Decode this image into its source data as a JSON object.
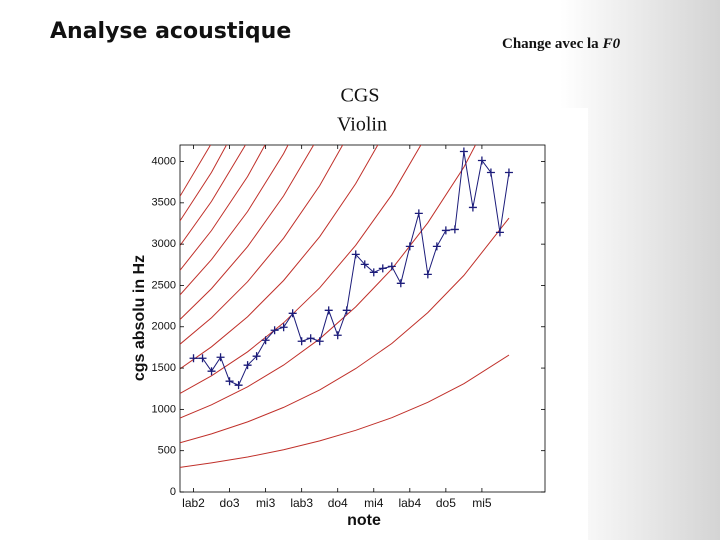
{
  "slide_title": "Analyse acoustique",
  "side_note": {
    "text": "Change avec la",
    "emphasis": "F0"
  },
  "chart_data": {
    "type": "line",
    "title": "CGS",
    "subtitle": "Violin",
    "xlabel": "note",
    "ylabel": "cgs absolu in Hz",
    "xlim": [
      -1.5,
      39
    ],
    "ylim": [
      0,
      4200
    ],
    "xticks": [
      {
        "value": 0,
        "label": "lab2"
      },
      {
        "value": 4,
        "label": "do3"
      },
      {
        "value": 8,
        "label": "mi3"
      },
      {
        "value": 12,
        "label": "lab3"
      },
      {
        "value": 16,
        "label": "do4"
      },
      {
        "value": 20,
        "label": "mi4"
      },
      {
        "value": 24,
        "label": "lab4"
      },
      {
        "value": 28,
        "label": "do5"
      },
      {
        "value": 32,
        "label": "mi5"
      }
    ],
    "yticks": [
      0,
      500,
      1000,
      1500,
      2000,
      2500,
      3000,
      3500,
      4000
    ],
    "x": [
      0,
      1,
      2,
      3,
      4,
      5,
      6,
      7,
      8,
      9,
      10,
      11,
      12,
      13,
      14,
      15,
      16,
      17,
      18,
      19,
      20,
      21,
      22,
      23,
      24,
      25,
      26,
      27,
      28,
      29,
      30,
      31,
      32,
      33,
      34,
      35
    ],
    "series": [
      {
        "color": "#1c1c7a",
        "values": [
          1619,
          1619,
          1462,
          1631,
          1341,
          1293,
          1535,
          1644,
          1837,
          1958,
          1994,
          2163,
          1825,
          1861,
          1825,
          2199,
          1897,
          2199,
          2876,
          2755,
          2659,
          2707,
          2731,
          2526,
          2973,
          3372,
          2634,
          2973,
          3166,
          3178,
          4121,
          3444,
          4012,
          3867,
          3142,
          3867
        ]
      }
    ],
    "curves": {
      "color": "#c0302a",
      "x": [
        -1.5,
        2,
        6,
        10,
        14,
        18,
        22,
        26,
        30,
        35
      ],
      "series": [
        {
          "values": [
            298,
            352,
            424,
            512,
            618,
            747,
            899,
            1086,
            1311,
            1658
          ]
        },
        {
          "values": [
            596,
            703,
            849,
            1024,
            1236,
            1493,
            1798,
            2172,
            2622,
            3315
          ]
        },
        {
          "values": [
            895,
            1055,
            1273,
            1536,
            1854,
            2240,
            2698,
            3258,
            3933,
            4973
          ]
        },
        {
          "values": [
            1193,
            1407,
            1697,
            2048,
            2472,
            2986,
            3597,
            4344,
            null,
            null
          ]
        },
        {
          "values": [
            1491,
            1758,
            2122,
            2560,
            3090,
            3733,
            4496,
            null,
            null,
            null
          ]
        },
        {
          "values": [
            1789,
            2110,
            2546,
            3072,
            3708,
            4479,
            null,
            null,
            null,
            null
          ]
        },
        {
          "values": [
            2088,
            2462,
            2970,
            3584,
            4325,
            null,
            null,
            null,
            null,
            null
          ]
        },
        {
          "values": [
            2386,
            2813,
            3395,
            4096,
            4943,
            null,
            null,
            null,
            null,
            null
          ]
        },
        {
          "values": [
            2684,
            3165,
            3819,
            4608,
            null,
            null,
            null,
            null,
            null,
            null
          ]
        },
        {
          "values": [
            2982,
            3517,
            4243,
            null,
            null,
            null,
            null,
            null,
            null,
            null
          ]
        },
        {
          "values": [
            3281,
            3868,
            4668,
            null,
            null,
            null,
            null,
            null,
            null,
            null
          ]
        },
        {
          "values": [
            3579,
            4220,
            null,
            null,
            null,
            null,
            null,
            null,
            null,
            null
          ]
        }
      ]
    }
  }
}
